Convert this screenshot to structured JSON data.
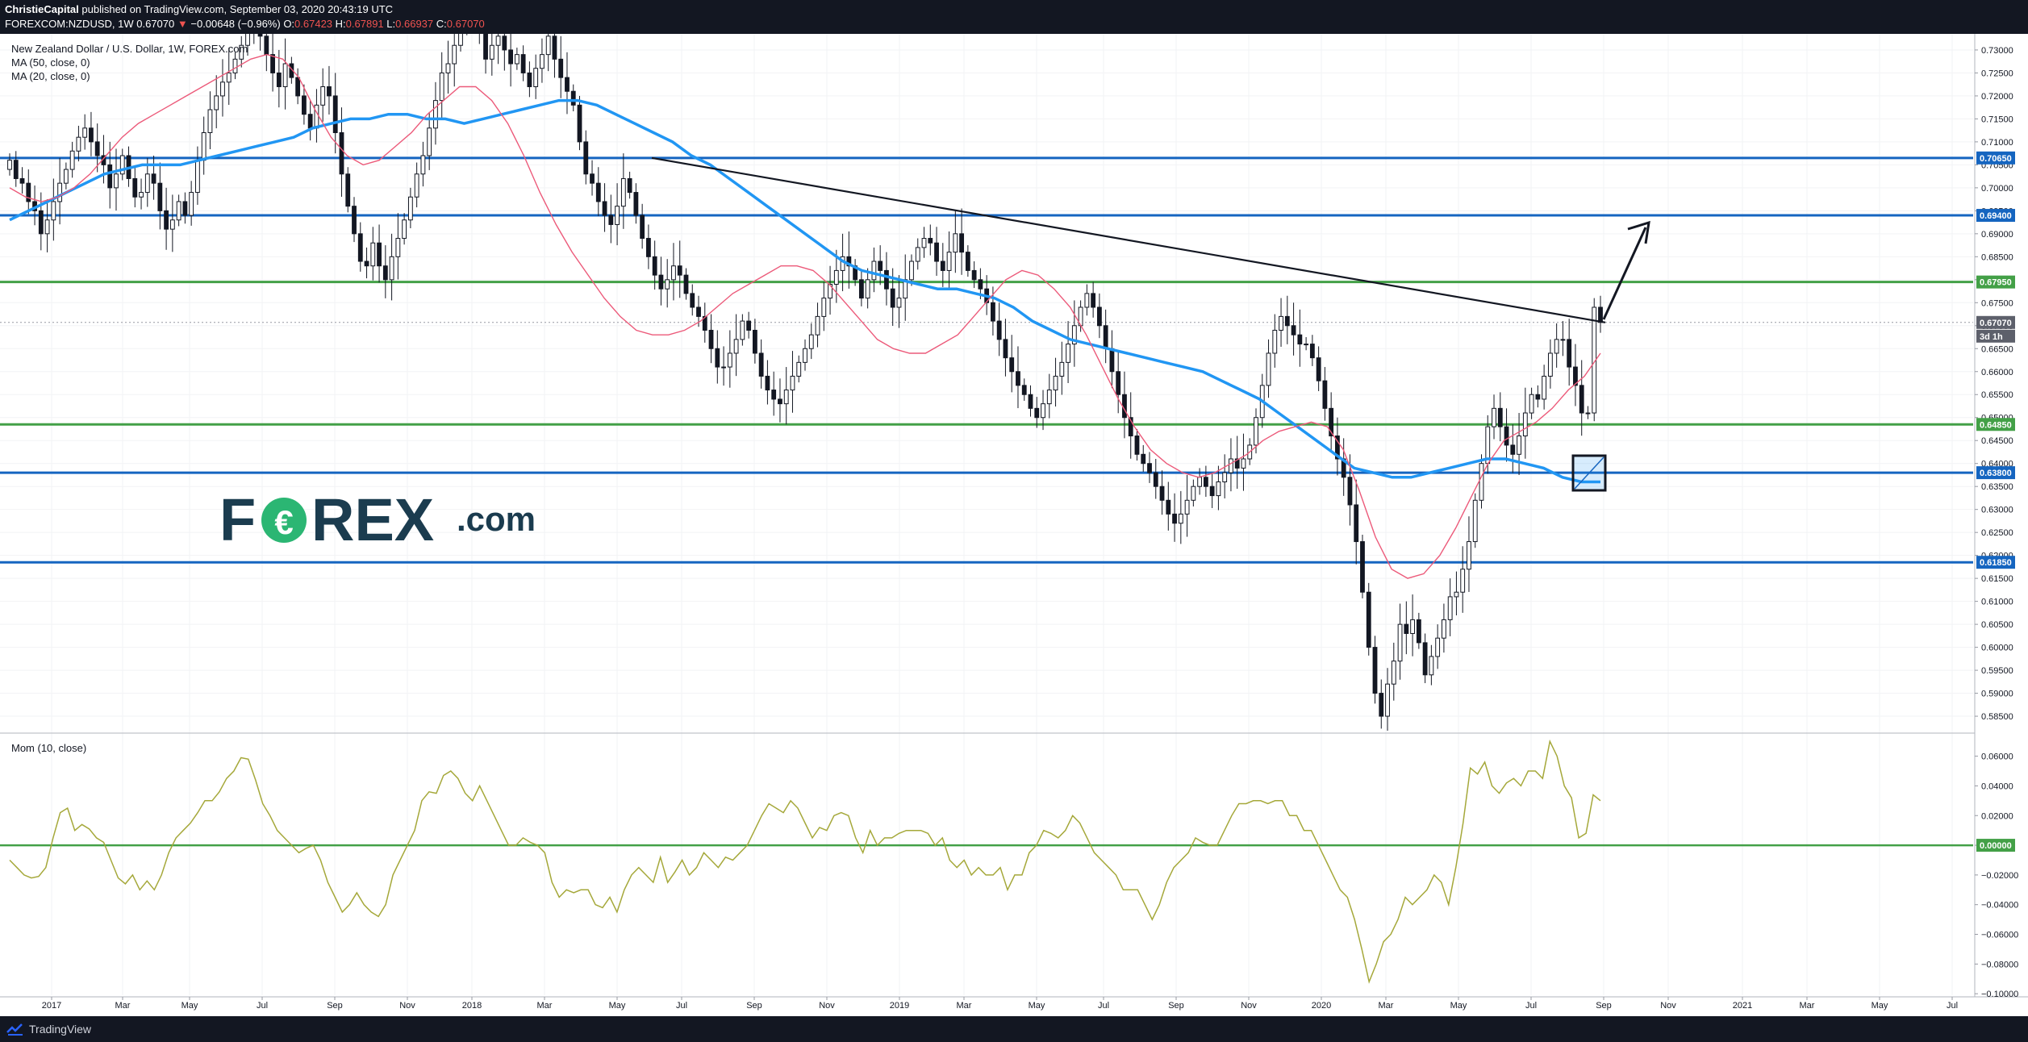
{
  "header": {
    "publisher": "ChristieCapital",
    "published_text": "published on TradingView.com, September 03, 2020 20:43:19 UTC",
    "symbol": "FOREXCOM:NZDUSD, 1W",
    "last": "0.67070",
    "change": "−0.00648 (−0.96%)",
    "o_label": "O:",
    "o_val": "0.67423",
    "h_label": "H:",
    "h_val": "0.67891",
    "l_label": "L:",
    "l_val": "0.66937",
    "c_label": "C:",
    "c_val": "0.67070",
    "down_arrow": "▼"
  },
  "legend": {
    "title": "New Zealand Dollar / U.S. Dollar, 1W, FOREX.com",
    "ma50": "MA (50, close, 0)",
    "ma20": "MA (20, close, 0)"
  },
  "indicator": {
    "label": "Mom (10, close)"
  },
  "logo": {
    "text_left": "F",
    "text_right": "REX",
    "suffix": ".com"
  },
  "footer": {
    "brand": "TradingView"
  },
  "colors": {
    "background": "#ffffff",
    "bar": "#131722",
    "blue_line": "#1565c0",
    "green_line": "#43a047",
    "ma50": "#2196f3",
    "ma20": "#ec5a7a",
    "momentum": "#a5a83a",
    "price_tag": "#5d606b",
    "logo_dark": "#1b3c4f",
    "logo_green": "#2bb673"
  },
  "chart_data": [
    {
      "type": "candlestick",
      "title": "New Zealand Dollar / U.S. Dollar, 1W, FOREX.com",
      "y_ticks": [
        "0.73000",
        "0.72500",
        "0.72000",
        "0.71500",
        "0.71000",
        "0.70500",
        "0.70000",
        "0.69500",
        "0.69000",
        "0.68500",
        "0.68000",
        "0.67500",
        "0.67000",
        "0.66500",
        "0.66000",
        "0.65500",
        "0.65000",
        "0.64500",
        "0.64000",
        "0.63500",
        "0.63000",
        "0.62500",
        "0.62000",
        "0.61500",
        "0.61000",
        "0.60500",
        "0.60000",
        "0.59500",
        "0.59000",
        "0.58500"
      ],
      "ylim": [
        0.5815,
        0.7335
      ],
      "x_ticks": [
        "2017",
        "Mar",
        "May",
        "Jul",
        "Sep",
        "Nov",
        "2018",
        "Mar",
        "May",
        "Jul",
        "Sep",
        "Nov",
        "2019",
        "Mar",
        "May",
        "Jul",
        "Sep",
        "Nov",
        "2020",
        "Mar",
        "May",
        "Jul",
        "Sep",
        "Nov",
        "2021",
        "Mar",
        "May",
        "Jul"
      ],
      "horizontal_levels": [
        {
          "value": 0.7065,
          "label": "0.70650",
          "color": "blue"
        },
        {
          "value": 0.694,
          "label": "0.69400",
          "color": "blue"
        },
        {
          "value": 0.6795,
          "label": "0.67950",
          "color": "green"
        },
        {
          "value": 0.6485,
          "label": "0.64850",
          "color": "green"
        },
        {
          "value": 0.638,
          "label": "0.63800",
          "color": "blue"
        },
        {
          "value": 0.6185,
          "label": "0.61850",
          "color": "blue"
        }
      ],
      "last_price": {
        "value": 0.6707,
        "label": "0.67070",
        "countdown": "3d 1h"
      },
      "close_series": [
        0.706,
        0.702,
        0.701,
        0.697,
        0.695,
        0.69,
        0.693,
        0.697,
        0.701,
        0.704,
        0.708,
        0.711,
        0.713,
        0.71,
        0.707,
        0.705,
        0.7,
        0.703,
        0.707,
        0.702,
        0.698,
        0.699,
        0.703,
        0.701,
        0.695,
        0.691,
        0.693,
        0.697,
        0.694,
        0.699,
        0.706,
        0.712,
        0.717,
        0.72,
        0.723,
        0.725,
        0.728,
        0.731,
        0.734,
        0.737,
        0.733,
        0.729,
        0.725,
        0.722,
        0.727,
        0.724,
        0.72,
        0.716,
        0.713,
        0.718,
        0.722,
        0.72,
        0.712,
        0.703,
        0.696,
        0.69,
        0.684,
        0.683,
        0.688,
        0.683,
        0.68,
        0.685,
        0.689,
        0.693,
        0.698,
        0.703,
        0.707,
        0.713,
        0.719,
        0.725,
        0.727,
        0.731,
        0.735,
        0.738,
        0.739,
        0.734,
        0.728,
        0.731,
        0.733,
        0.73,
        0.727,
        0.729,
        0.725,
        0.722,
        0.726,
        0.729,
        0.733,
        0.728,
        0.724,
        0.721,
        0.718,
        0.71,
        0.703,
        0.701,
        0.697,
        0.694,
        0.692,
        0.696,
        0.702,
        0.699,
        0.694,
        0.689,
        0.685,
        0.681,
        0.678,
        0.68,
        0.683,
        0.681,
        0.677,
        0.674,
        0.672,
        0.669,
        0.665,
        0.661,
        0.661,
        0.664,
        0.667,
        0.671,
        0.669,
        0.664,
        0.659,
        0.656,
        0.654,
        0.653,
        0.656,
        0.659,
        0.662,
        0.665,
        0.668,
        0.672,
        0.676,
        0.679,
        0.682,
        0.685,
        0.683,
        0.68,
        0.676,
        0.68,
        0.684,
        0.682,
        0.678,
        0.674,
        0.676,
        0.68,
        0.684,
        0.687,
        0.689,
        0.688,
        0.684,
        0.682,
        0.686,
        0.69,
        0.686,
        0.682,
        0.68,
        0.678,
        0.675,
        0.671,
        0.667,
        0.663,
        0.66,
        0.657,
        0.655,
        0.652,
        0.65,
        0.653,
        0.656,
        0.659,
        0.662,
        0.666,
        0.67,
        0.674,
        0.677,
        0.674,
        0.67,
        0.665,
        0.66,
        0.655,
        0.65,
        0.646,
        0.642,
        0.64,
        0.638,
        0.635,
        0.632,
        0.629,
        0.627,
        0.629,
        0.632,
        0.635,
        0.637,
        0.635,
        0.633,
        0.636,
        0.638,
        0.641,
        0.639,
        0.641,
        0.644,
        0.65,
        0.657,
        0.664,
        0.669,
        0.672,
        0.67,
        0.668,
        0.666,
        0.666,
        0.663,
        0.658,
        0.652,
        0.646,
        0.641,
        0.637,
        0.631,
        0.623,
        0.612,
        0.6,
        0.59,
        0.585,
        0.592,
        0.597,
        0.605,
        0.603,
        0.606,
        0.601,
        0.594,
        0.598,
        0.602,
        0.606,
        0.611,
        0.612,
        0.617,
        0.623,
        0.632,
        0.64,
        0.648,
        0.652,
        0.648,
        0.644,
        0.642,
        0.646,
        0.651,
        0.655,
        0.654,
        0.659,
        0.664,
        0.667,
        0.667,
        0.661,
        0.657,
        0.651,
        0.651,
        0.674,
        0.6707
      ],
      "ma50_series": [
        0.693,
        0.695,
        0.697,
        0.699,
        0.701,
        0.703,
        0.704,
        0.705,
        0.705,
        0.705,
        0.706,
        0.707,
        0.708,
        0.709,
        0.71,
        0.711,
        0.713,
        0.714,
        0.715,
        0.715,
        0.716,
        0.716,
        0.715,
        0.715,
        0.714,
        0.715,
        0.716,
        0.717,
        0.718,
        0.719,
        0.719,
        0.718,
        0.716,
        0.714,
        0.712,
        0.71,
        0.707,
        0.705,
        0.702,
        0.699,
        0.696,
        0.693,
        0.69,
        0.687,
        0.684,
        0.682,
        0.681,
        0.68,
        0.679,
        0.678,
        0.678,
        0.677,
        0.676,
        0.674,
        0.671,
        0.669,
        0.667,
        0.666,
        0.665,
        0.664,
        0.663,
        0.662,
        0.661,
        0.66,
        0.658,
        0.656,
        0.654,
        0.651,
        0.648,
        0.645,
        0.642,
        0.639,
        0.638,
        0.637,
        0.637,
        0.638,
        0.639,
        0.64,
        0.641,
        0.641,
        0.64,
        0.639,
        0.637,
        0.636,
        0.636
      ],
      "ma20_series": [
        0.7,
        0.698,
        0.697,
        0.698,
        0.7,
        0.703,
        0.707,
        0.711,
        0.714,
        0.716,
        0.718,
        0.72,
        0.722,
        0.724,
        0.726,
        0.728,
        0.729,
        0.728,
        0.724,
        0.717,
        0.711,
        0.707,
        0.705,
        0.706,
        0.709,
        0.712,
        0.716,
        0.719,
        0.722,
        0.722,
        0.719,
        0.714,
        0.707,
        0.699,
        0.692,
        0.686,
        0.681,
        0.676,
        0.672,
        0.669,
        0.668,
        0.668,
        0.669,
        0.671,
        0.674,
        0.677,
        0.679,
        0.681,
        0.683,
        0.683,
        0.682,
        0.679,
        0.675,
        0.671,
        0.667,
        0.665,
        0.664,
        0.664,
        0.666,
        0.668,
        0.672,
        0.676,
        0.68,
        0.682,
        0.681,
        0.678,
        0.674,
        0.668,
        0.661,
        0.654,
        0.648,
        0.643,
        0.64,
        0.638,
        0.637,
        0.638,
        0.64,
        0.642,
        0.645,
        0.647,
        0.648,
        0.649,
        0.648,
        0.643,
        0.634,
        0.624,
        0.617,
        0.615,
        0.616,
        0.62,
        0.626,
        0.633,
        0.64,
        0.645,
        0.647,
        0.649,
        0.652,
        0.656,
        0.659,
        0.664
      ],
      "trendline": {
        "from": {
          "date": "2018 Jun",
          "value": 0.7065
        },
        "to": {
          "date": "2020 Sep",
          "value": 0.6707
        }
      }
    },
    {
      "type": "line",
      "title": "Mom (10, close)",
      "y_ticks": [
        "0.06000",
        "0.04000",
        "0.02000",
        "0.00000",
        "−0.02000",
        "−0.04000",
        "−0.06000",
        "−0.08000",
        "−0.10000"
      ],
      "ylim": [
        -0.101,
        0.075
      ],
      "zero_line_label": "0.00000",
      "series": [
        {
          "values": [
            -0.01,
            -0.015,
            -0.02,
            -0.022,
            -0.021,
            -0.015,
            0.005,
            0.022,
            0.025,
            0.01,
            0.014,
            0.011,
            0.005,
            0.002,
            -0.01,
            -0.022,
            -0.026,
            -0.02,
            -0.03,
            -0.024,
            -0.03,
            -0.02,
            -0.005,
            0.005,
            0.01,
            0.015,
            0.022,
            0.03,
            0.03,
            0.036,
            0.045,
            0.05,
            0.059,
            0.058,
            0.044,
            0.028,
            0.02,
            0.01,
            0.005,
            0.0,
            -0.005,
            -0.002,
            0.0,
            -0.01,
            -0.025,
            -0.035,
            -0.045,
            -0.04,
            -0.032,
            -0.04,
            -0.045,
            -0.048,
            -0.04,
            -0.02,
            -0.01,
            0.0,
            0.01,
            0.03,
            0.036,
            0.035,
            0.047,
            0.05,
            0.045,
            0.035,
            0.03,
            0.04,
            0.03,
            0.02,
            0.01,
            0.0,
            0.0,
            0.005,
            0.002,
            0.0,
            -0.005,
            -0.025,
            -0.035,
            -0.03,
            -0.032,
            -0.03,
            -0.03,
            -0.04,
            -0.042,
            -0.035,
            -0.045,
            -0.03,
            -0.02,
            -0.015,
            -0.02,
            -0.025,
            -0.008,
            -0.025,
            -0.018,
            -0.01,
            -0.02,
            -0.015,
            -0.005,
            -0.01,
            -0.015,
            -0.008,
            -0.01,
            -0.005,
            0.0,
            0.01,
            0.02,
            0.028,
            0.025,
            0.022,
            0.03,
            0.025,
            0.015,
            0.005,
            0.012,
            0.01,
            0.02,
            0.022,
            0.02,
            0.005,
            -0.005,
            0.01,
            0.0,
            0.005,
            0.005,
            0.008,
            0.01,
            0.01,
            0.01,
            0.008,
            0.0,
            0.005,
            -0.01,
            -0.015,
            -0.01,
            -0.02,
            -0.015,
            -0.02,
            -0.02,
            -0.015,
            -0.03,
            -0.02,
            -0.02,
            -0.005,
            0.0,
            0.01,
            0.008,
            0.005,
            0.01,
            0.02,
            0.015,
            0.005,
            -0.005,
            -0.01,
            -0.015,
            -0.02,
            -0.03,
            -0.03,
            -0.03,
            -0.04,
            -0.05,
            -0.04,
            -0.025,
            -0.015,
            -0.01,
            -0.005,
            0.005,
            0.002,
            0.0,
            0.0,
            0.01,
            0.02,
            0.028,
            0.028,
            0.03,
            0.03,
            0.028,
            0.03,
            0.03,
            0.02,
            0.02,
            0.01,
            0.01,
            0.0,
            -0.01,
            -0.02,
            -0.03,
            -0.035,
            -0.05,
            -0.07,
            -0.092,
            -0.08,
            -0.065,
            -0.06,
            -0.05,
            -0.035,
            -0.04,
            -0.035,
            -0.03,
            -0.02,
            -0.025,
            -0.04,
            -0.015,
            0.015,
            0.052,
            0.048,
            0.056,
            0.04,
            0.035,
            0.042,
            0.045,
            0.04,
            0.05,
            0.05,
            0.045,
            0.07,
            0.06,
            0.04,
            0.032,
            0.005,
            0.008,
            0.034,
            0.03
          ]
        }
      ]
    }
  ]
}
